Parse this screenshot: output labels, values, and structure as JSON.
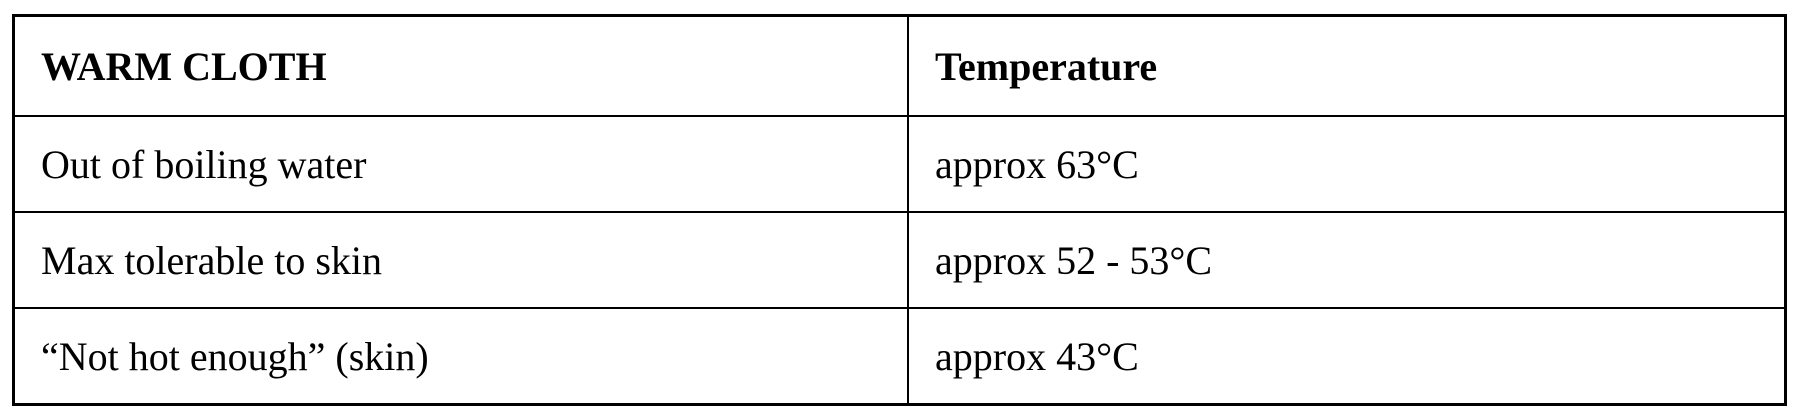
{
  "table": {
    "headers": [
      "WARM CLOTH",
      "Temperature"
    ],
    "rows": [
      [
        "Out of boiling water",
        "approx 63°C"
      ],
      [
        "Max tolerable to skin",
        "approx 52 - 53°C"
      ],
      [
        "“Not hot enough” (skin)",
        "approx 43°C"
      ]
    ]
  }
}
